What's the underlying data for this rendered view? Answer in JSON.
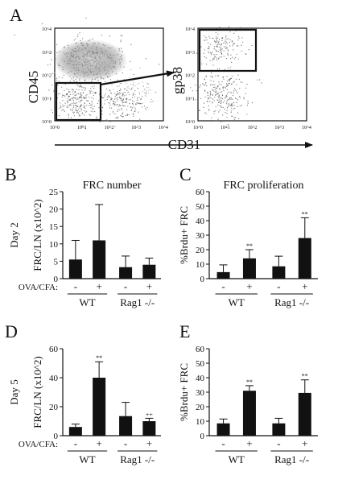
{
  "panel_a": {
    "letter": "A",
    "left_ylabel": "CD45",
    "right_ylabel": "gp38",
    "xlabel": "CD31",
    "tick_labels": [
      "10^0",
      "10^1",
      "10^2",
      "10^3",
      "10^4"
    ]
  },
  "condition_label": "OVA/CFA:",
  "group_labels": [
    "WT",
    "Rag1 -/-"
  ],
  "treatment_signs": [
    "-",
    "+",
    "-",
    "+"
  ],
  "chart_data": [
    {
      "panel": "B",
      "type": "bar",
      "title": "FRC number",
      "row_label": "Day 2",
      "xlabel": "",
      "ylabel": "FRC/LN (x10^2)",
      "ylim": [
        0,
        25
      ],
      "yticks": [
        0,
        5,
        10,
        15,
        20,
        25
      ],
      "categories": [
        "WT -",
        "WT +",
        "Rag1 -/- -",
        "Rag1 -/- +"
      ],
      "values": [
        5.5,
        11,
        3.3,
        4
      ],
      "errors": [
        5.5,
        10.3,
        3.2,
        1.9
      ],
      "annotations": [
        "",
        "",
        "",
        ""
      ],
      "show_condition_row": true
    },
    {
      "panel": "C",
      "type": "bar",
      "title": "FRC proliferation",
      "row_label": "",
      "xlabel": "",
      "ylabel": "%Brdu+ FRC",
      "ylim": [
        0,
        60
      ],
      "yticks": [
        0,
        10,
        20,
        30,
        40,
        50,
        60
      ],
      "categories": [
        "WT -",
        "WT +",
        "Rag1 -/- -",
        "Rag1 -/- +"
      ],
      "values": [
        4.5,
        14,
        8.5,
        28
      ],
      "errors": [
        5,
        6,
        7,
        14
      ],
      "annotations": [
        "",
        "**",
        "",
        "**"
      ],
      "show_condition_row": false
    },
    {
      "panel": "D",
      "type": "bar",
      "title": "",
      "row_label": "Day 5",
      "xlabel": "",
      "ylabel": "FRC/LN (x10^2)",
      "ylim": [
        0,
        60
      ],
      "yticks": [
        0,
        20,
        40,
        60
      ],
      "categories": [
        "WT -",
        "WT +",
        "Rag1 -/- -",
        "Rag1 -/- +"
      ],
      "values": [
        6,
        40,
        13.5,
        10
      ],
      "errors": [
        2,
        11,
        9.5,
        2
      ],
      "annotations": [
        "",
        "**",
        "",
        "++"
      ],
      "show_condition_row": true
    },
    {
      "panel": "E",
      "type": "bar",
      "title": "",
      "row_label": "",
      "xlabel": "",
      "ylabel": "%Brdu+ FRC",
      "ylim": [
        0,
        60
      ],
      "yticks": [
        0,
        10,
        20,
        30,
        40,
        50,
        60
      ],
      "categories": [
        "WT -",
        "WT +",
        "Rag1 -/- -",
        "Rag1 -/- +"
      ],
      "values": [
        8.5,
        31,
        8.5,
        29.5
      ],
      "errors": [
        3,
        3.5,
        3.5,
        9
      ],
      "annotations": [
        "",
        "**",
        "",
        "**"
      ],
      "show_condition_row": false
    }
  ]
}
